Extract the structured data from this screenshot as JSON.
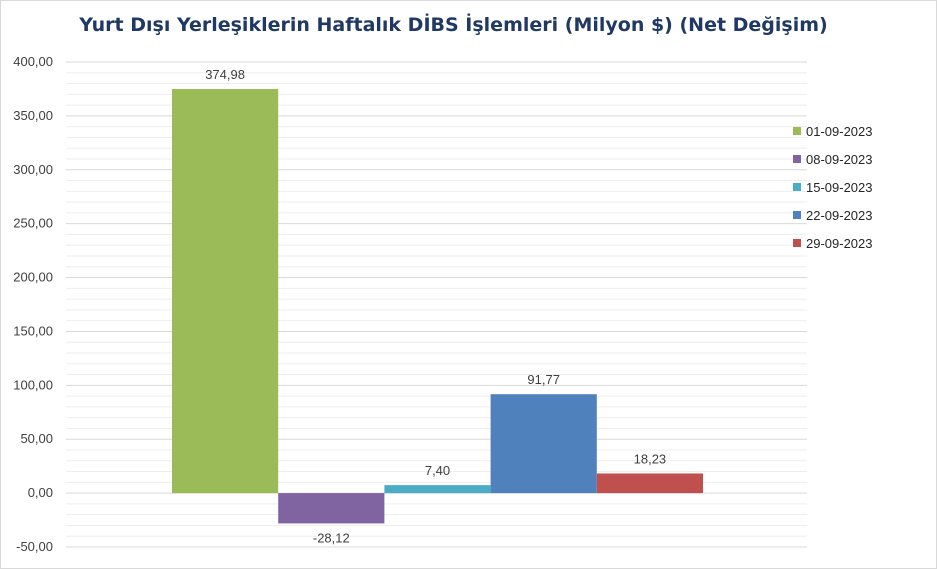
{
  "chart_data": {
    "type": "bar",
    "title": "Yurt Dışı Yerleşiklerin Haftalık DİBS İşlemleri (Milyon $) (Net Değişim)",
    "xlabel": "",
    "ylabel": "",
    "ylim": [
      -50,
      400
    ],
    "yticks": [
      "400,00",
      "350,00",
      "300,00",
      "250,00",
      "200,00",
      "150,00",
      "100,00",
      "50,00",
      "0,00",
      "-50,00"
    ],
    "grid": true,
    "legend_position": "right",
    "series": [
      {
        "name": "01-09-2023",
        "value": 374.98,
        "label": "374,98",
        "color": "#9bbb59"
      },
      {
        "name": "08-09-2023",
        "value": -28.12,
        "label": "-28,12",
        "color": "#8064a2"
      },
      {
        "name": "15-09-2023",
        "value": 7.4,
        "label": "7,40",
        "color": "#4bacc6"
      },
      {
        "name": "22-09-2023",
        "value": 91.77,
        "label": "91,77",
        "color": "#4f81bd"
      },
      {
        "name": "29-09-2023",
        "value": 18.23,
        "label": "18,23",
        "color": "#c0504d"
      }
    ]
  }
}
